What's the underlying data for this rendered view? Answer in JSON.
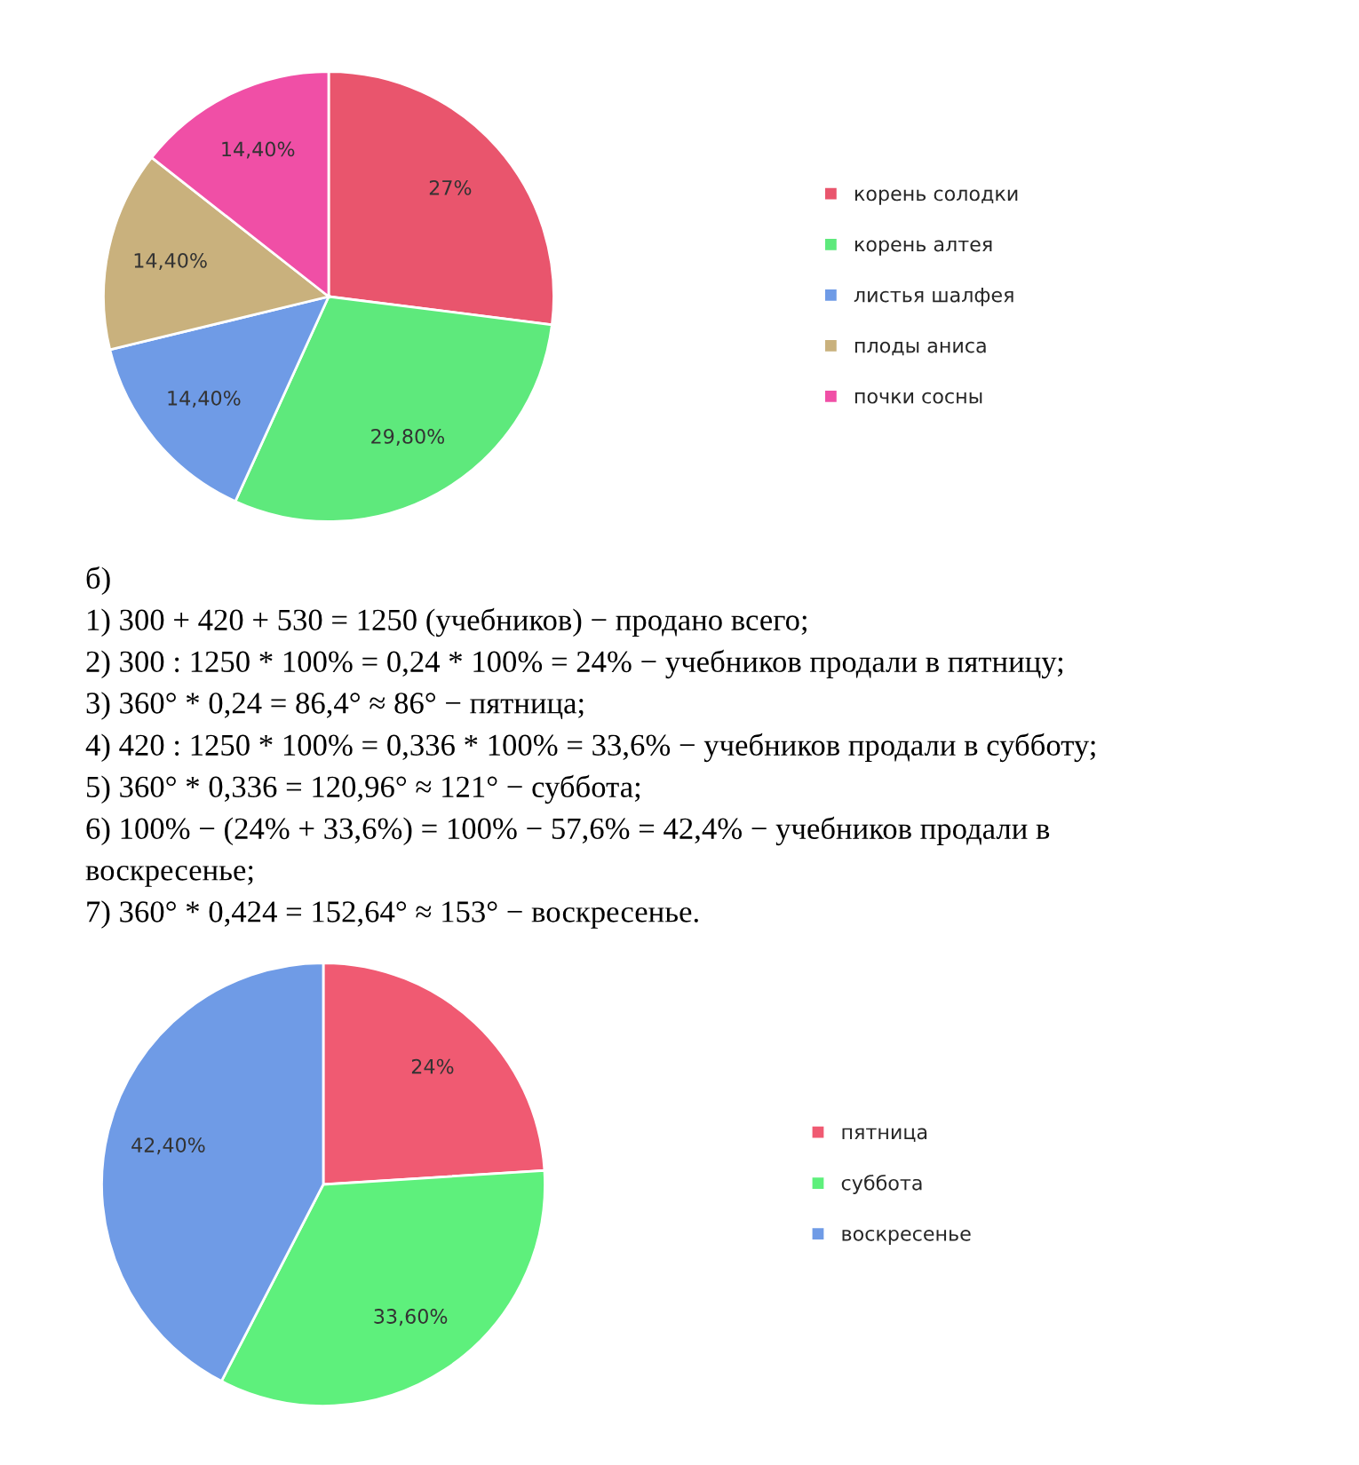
{
  "chart_data": [
    {
      "type": "pie",
      "categories": [
        "корень солодки",
        "корень алтея",
        "листья шалфея",
        "плоды аниса",
        "почки сосны"
      ],
      "values": [
        27,
        29.8,
        14.4,
        14.4,
        14.4
      ],
      "value_labels": [
        "27%",
        "29,80%",
        "14,40%",
        "14,40%",
        "14,40%"
      ],
      "colors": [
        "#e9556d",
        "#5ee97c",
        "#6f9be6",
        "#c9b17d",
        "#f04fa6"
      ],
      "legend": "right"
    },
    {
      "type": "pie",
      "categories": [
        "пятница",
        "суббота",
        "воскресенье"
      ],
      "values": [
        24,
        33.6,
        42.4
      ],
      "value_labels": [
        "24%",
        "33,60%",
        "42,40%"
      ],
      "colors": [
        "#f05a72",
        "#5ef07c",
        "#6f9be6"
      ],
      "legend": "right",
      "annotations": [
        "б)",
        "1) 300 + 420 + 530 = 1250 (учебников) − продано всего;",
        "2) 300 : 1250 * 100% = 0,24 * 100% = 24% − учебников продали в пятницу;",
        "3) 360° * 0,24 = 86,4° ≈ 86° − пятница;",
        "4) 420 : 1250 * 100% = 0,336 * 100% = 33,6% − учебников продали в субботу;",
        "5) 360° * 0,336 = 120,96° ≈ 121° − суббота;",
        "6) 100% − (24% + 33,6%) = 100% − 57,6% = 42,4% − учебников продали в",
        "воскресенье;",
        "7) 360° * 0,424 = 152,64° ≈ 153° − воскресенье."
      ]
    }
  ]
}
